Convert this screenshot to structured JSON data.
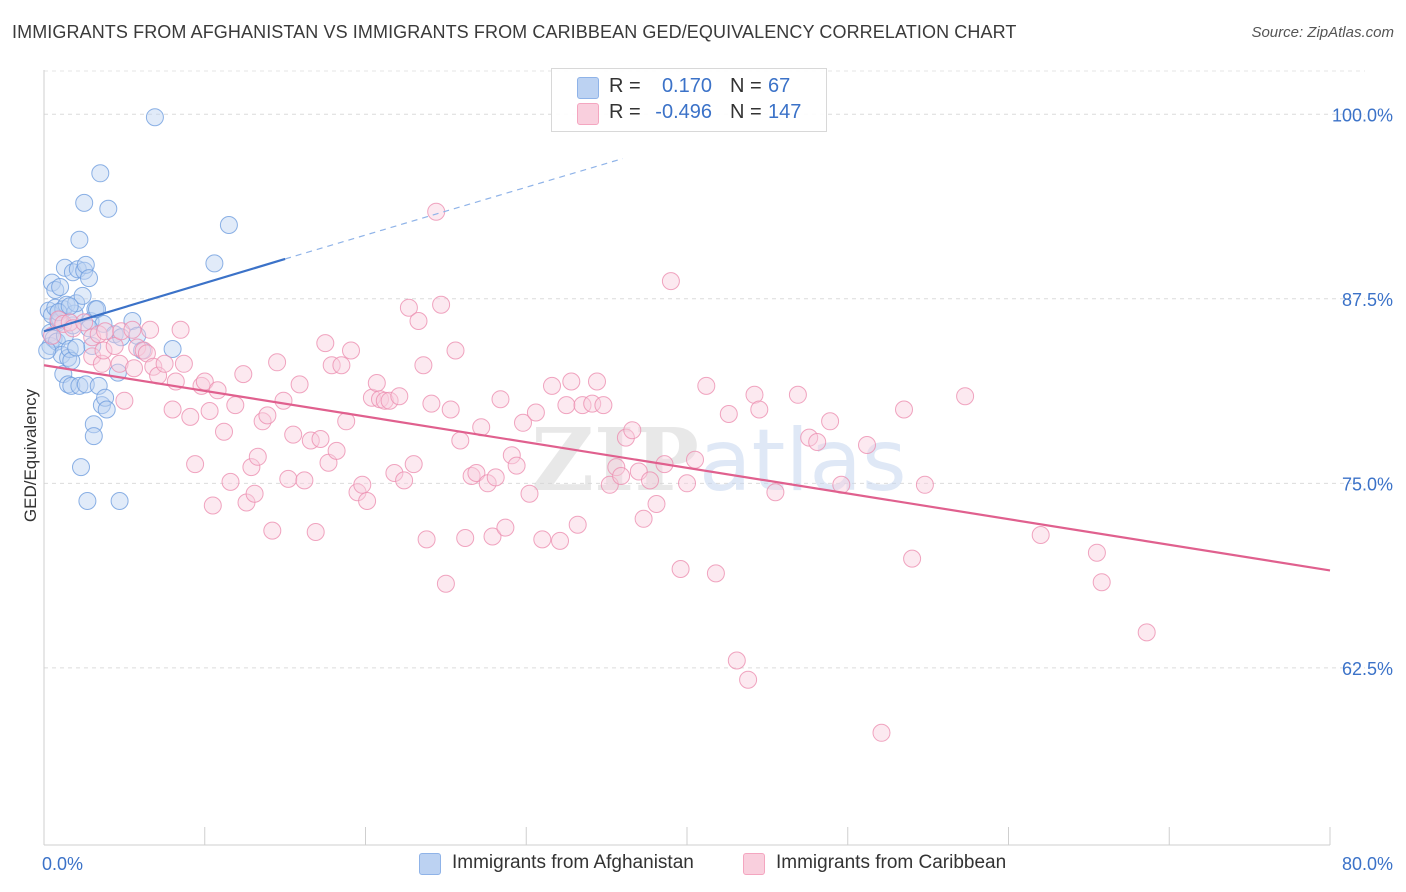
{
  "title": "IMMIGRANTS FROM AFGHANISTAN VS IMMIGRANTS FROM CARIBBEAN GED/EQUIVALENCY CORRELATION CHART",
  "source": "Source: ZipAtlas.com",
  "watermark": "ZIPatlas",
  "colors": {
    "blue": "#8fb3e8",
    "blue_line": "#3b72c8",
    "pink": "#f4a6c0",
    "pink_line": "#e0608e",
    "value_text": "#3b72c8"
  },
  "legend_top": {
    "rows": [
      {
        "r_label": "R =",
        "r_value": "0.170",
        "n_label": "N =",
        "n_value": "67"
      },
      {
        "r_label": "R =",
        "r_value": "-0.496",
        "n_label": "N =",
        "n_value": "147"
      }
    ]
  },
  "legend_bottom": [
    {
      "label": "Immigrants from Afghanistan"
    },
    {
      "label": "Immigrants from Caribbean"
    }
  ],
  "chart_data": {
    "type": "scatter",
    "title": "IMMIGRANTS FROM AFGHANISTAN VS IMMIGRANTS FROM CARIBBEAN GED/EQUIVALENCY CORRELATION CHART",
    "xlabel": "",
    "ylabel": "GED/Equivalency",
    "xlim": [
      0,
      80
    ],
    "ylim": [
      50.5,
      103
    ],
    "x_tick_labels": [
      "0.0%",
      "80.0%"
    ],
    "y_ticks": [
      62.5,
      75.0,
      87.5,
      100.0
    ],
    "y_tick_labels": [
      "62.5%",
      "75.0%",
      "87.5%",
      "100.0%"
    ],
    "grid": true,
    "legend_position": "bottom",
    "series": [
      {
        "name": "Immigrants from Afghanistan",
        "color": "#8fb3e8",
        "r": 0.17,
        "n": 67,
        "trend": {
          "x": [
            0,
            15
          ],
          "y": [
            85.3,
            90.2
          ],
          "dashed_extension_to": [
            36,
            97
          ]
        },
        "points": [
          [
            0.3,
            86.7
          ],
          [
            0.4,
            85.2
          ],
          [
            0.4,
            84.3
          ],
          [
            0.5,
            88.6
          ],
          [
            0.5,
            86.4
          ],
          [
            0.6,
            84.8
          ],
          [
            0.7,
            86.9
          ],
          [
            0.7,
            88.1
          ],
          [
            0.8,
            84.6
          ],
          [
            0.9,
            85.9
          ],
          [
            1.0,
            88.3
          ],
          [
            1.0,
            86.1
          ],
          [
            1.1,
            83.7
          ],
          [
            1.2,
            82.4
          ],
          [
            1.2,
            86.8
          ],
          [
            1.3,
            89.6
          ],
          [
            1.3,
            85.0
          ],
          [
            1.4,
            87.1
          ],
          [
            1.5,
            81.7
          ],
          [
            1.5,
            83.5
          ],
          [
            1.6,
            84.1
          ],
          [
            1.7,
            81.6
          ],
          [
            1.7,
            83.3
          ],
          [
            1.8,
            89.3
          ],
          [
            1.8,
            85.7
          ],
          [
            1.9,
            86.5
          ],
          [
            2.0,
            87.2
          ],
          [
            2.1,
            89.5
          ],
          [
            2.2,
            91.5
          ],
          [
            2.2,
            81.6
          ],
          [
            2.3,
            76.1
          ],
          [
            2.4,
            87.7
          ],
          [
            2.5,
            89.4
          ],
          [
            2.5,
            94.0
          ],
          [
            2.6,
            89.8
          ],
          [
            2.6,
            81.7
          ],
          [
            2.7,
            73.8
          ],
          [
            2.8,
            88.9
          ],
          [
            2.9,
            86.0
          ],
          [
            3.0,
            84.3
          ],
          [
            3.1,
            79.0
          ],
          [
            3.1,
            78.2
          ],
          [
            3.2,
            86.8
          ],
          [
            3.3,
            86.8
          ],
          [
            3.4,
            81.6
          ],
          [
            3.5,
            96.0
          ],
          [
            3.6,
            80.3
          ],
          [
            3.7,
            85.8
          ],
          [
            3.8,
            80.8
          ],
          [
            3.9,
            80.0
          ],
          [
            4.0,
            93.6
          ],
          [
            4.4,
            85.1
          ],
          [
            4.6,
            82.5
          ],
          [
            4.7,
            73.8
          ],
          [
            4.8,
            84.9
          ],
          [
            5.5,
            86.0
          ],
          [
            5.8,
            85.0
          ],
          [
            6.1,
            84.0
          ],
          [
            6.9,
            99.8
          ],
          [
            8.0,
            84.1
          ],
          [
            10.6,
            89.9
          ],
          [
            11.5,
            92.5
          ],
          [
            0.2,
            84.0
          ],
          [
            0.9,
            86.6
          ],
          [
            1.6,
            87.0
          ],
          [
            2.0,
            84.2
          ],
          [
            2.8,
            85.5
          ]
        ]
      },
      {
        "name": "Immigrants from Caribbean",
        "color": "#f4a6c0",
        "r": -0.496,
        "n": 147,
        "trend": {
          "x": [
            0,
            80
          ],
          "y": [
            83.0,
            69.1
          ]
        },
        "points": [
          [
            0.5,
            85.0
          ],
          [
            0.9,
            86.1
          ],
          [
            1.2,
            85.8
          ],
          [
            1.6,
            85.9
          ],
          [
            1.8,
            85.5
          ],
          [
            2.5,
            85.9
          ],
          [
            3.0,
            84.9
          ],
          [
            3.0,
            83.6
          ],
          [
            3.4,
            85.1
          ],
          [
            3.6,
            83.1
          ],
          [
            3.7,
            84.0
          ],
          [
            3.8,
            85.3
          ],
          [
            4.4,
            84.3
          ],
          [
            4.7,
            83.1
          ],
          [
            4.8,
            85.3
          ],
          [
            5.0,
            80.6
          ],
          [
            5.5,
            85.4
          ],
          [
            5.6,
            82.8
          ],
          [
            5.8,
            84.2
          ],
          [
            6.2,
            84.0
          ],
          [
            6.4,
            83.8
          ],
          [
            6.6,
            85.4
          ],
          [
            6.8,
            82.9
          ],
          [
            7.1,
            82.3
          ],
          [
            7.5,
            83.1
          ],
          [
            8.0,
            80.0
          ],
          [
            8.2,
            81.9
          ],
          [
            8.5,
            85.4
          ],
          [
            8.7,
            83.1
          ],
          [
            9.1,
            79.5
          ],
          [
            9.4,
            76.3
          ],
          [
            9.8,
            81.6
          ],
          [
            10.0,
            81.9
          ],
          [
            10.3,
            79.9
          ],
          [
            10.5,
            73.5
          ],
          [
            10.8,
            81.3
          ],
          [
            11.2,
            78.5
          ],
          [
            11.6,
            75.1
          ],
          [
            11.9,
            80.3
          ],
          [
            12.4,
            82.4
          ],
          [
            12.6,
            73.7
          ],
          [
            12.9,
            76.1
          ],
          [
            13.1,
            74.3
          ],
          [
            13.3,
            76.8
          ],
          [
            13.6,
            79.2
          ],
          [
            13.9,
            79.6
          ],
          [
            14.2,
            71.8
          ],
          [
            14.5,
            83.2
          ],
          [
            14.9,
            80.6
          ],
          [
            15.2,
            75.3
          ],
          [
            15.5,
            78.3
          ],
          [
            15.9,
            81.7
          ],
          [
            16.2,
            75.2
          ],
          [
            16.6,
            77.9
          ],
          [
            16.9,
            71.7
          ],
          [
            17.2,
            78.0
          ],
          [
            17.5,
            84.5
          ],
          [
            17.7,
            76.4
          ],
          [
            17.9,
            83.0
          ],
          [
            18.2,
            77.2
          ],
          [
            18.5,
            83.0
          ],
          [
            18.8,
            79.2
          ],
          [
            19.1,
            84.0
          ],
          [
            19.5,
            74.4
          ],
          [
            19.8,
            74.9
          ],
          [
            20.1,
            73.8
          ],
          [
            20.4,
            80.8
          ],
          [
            20.7,
            81.8
          ],
          [
            20.9,
            80.7
          ],
          [
            21.2,
            80.6
          ],
          [
            21.5,
            80.6
          ],
          [
            21.8,
            75.7
          ],
          [
            22.1,
            80.9
          ],
          [
            22.4,
            75.2
          ],
          [
            22.7,
            86.9
          ],
          [
            23.0,
            76.3
          ],
          [
            23.3,
            86.0
          ],
          [
            23.6,
            83.0
          ],
          [
            23.8,
            71.2
          ],
          [
            24.1,
            80.4
          ],
          [
            24.4,
            93.4
          ],
          [
            24.7,
            87.1
          ],
          [
            25.0,
            68.2
          ],
          [
            25.3,
            80.0
          ],
          [
            25.6,
            84.0
          ],
          [
            25.9,
            77.9
          ],
          [
            26.2,
            71.3
          ],
          [
            26.6,
            75.5
          ],
          [
            26.9,
            75.7
          ],
          [
            27.2,
            78.8
          ],
          [
            27.6,
            75.0
          ],
          [
            27.9,
            71.4
          ],
          [
            28.1,
            75.4
          ],
          [
            28.4,
            80.7
          ],
          [
            28.7,
            72.0
          ],
          [
            29.1,
            76.9
          ],
          [
            29.4,
            76.2
          ],
          [
            29.8,
            79.1
          ],
          [
            30.2,
            74.3
          ],
          [
            30.6,
            79.8
          ],
          [
            31.0,
            71.2
          ],
          [
            31.6,
            81.6
          ],
          [
            32.1,
            71.1
          ],
          [
            32.5,
            80.3
          ],
          [
            32.8,
            81.9
          ],
          [
            33.2,
            72.2
          ],
          [
            33.5,
            80.3
          ],
          [
            34.1,
            80.4
          ],
          [
            34.4,
            81.9
          ],
          [
            34.8,
            80.3
          ],
          [
            35.2,
            74.9
          ],
          [
            35.6,
            76.1
          ],
          [
            35.9,
            75.5
          ],
          [
            36.2,
            78.1
          ],
          [
            36.6,
            78.6
          ],
          [
            37.0,
            75.8
          ],
          [
            37.3,
            72.6
          ],
          [
            37.7,
            75.2
          ],
          [
            38.1,
            73.6
          ],
          [
            38.6,
            76.3
          ],
          [
            39.0,
            88.7
          ],
          [
            39.6,
            69.2
          ],
          [
            40.0,
            75.0
          ],
          [
            40.5,
            76.6
          ],
          [
            41.2,
            81.6
          ],
          [
            41.8,
            68.9
          ],
          [
            42.6,
            79.7
          ],
          [
            43.1,
            63.0
          ],
          [
            43.8,
            61.7
          ],
          [
            44.2,
            81.0
          ],
          [
            44.5,
            80.0
          ],
          [
            45.5,
            74.4
          ],
          [
            46.9,
            81.0
          ],
          [
            47.6,
            78.1
          ],
          [
            48.1,
            77.8
          ],
          [
            48.9,
            79.2
          ],
          [
            49.6,
            74.9
          ],
          [
            51.2,
            77.6
          ],
          [
            53.5,
            80.0
          ],
          [
            54.0,
            69.9
          ],
          [
            54.8,
            74.9
          ],
          [
            57.3,
            80.9
          ],
          [
            62.0,
            71.5
          ],
          [
            65.5,
            70.3
          ],
          [
            65.8,
            68.3
          ],
          [
            68.6,
            64.9
          ],
          [
            52.1,
            58.1
          ]
        ]
      }
    ]
  }
}
